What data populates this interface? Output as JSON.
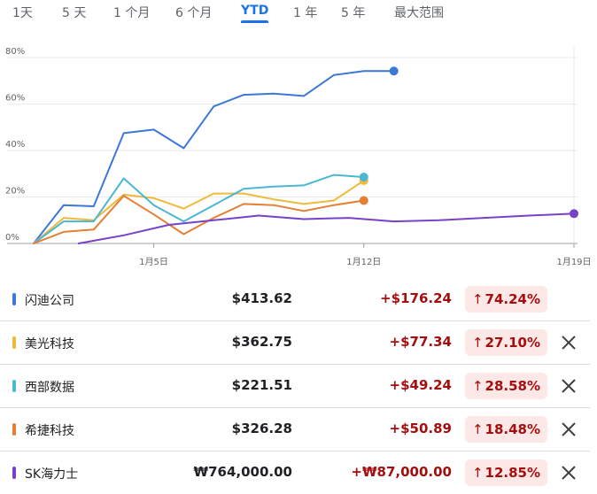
{
  "tabs": [
    {
      "label": "1天"
    },
    {
      "label": "5 天"
    },
    {
      "label": "1 个月"
    },
    {
      "label": "6 个月"
    },
    {
      "label": "YTD",
      "active": true
    },
    {
      "label": "1 年"
    },
    {
      "label": "5 年"
    },
    {
      "label": "最大范围"
    }
  ],
  "colors": {
    "series": [
      "#3c78d8",
      "#f0b93c",
      "#4bb7d3",
      "#e67e33",
      "#7842c8"
    ],
    "positive_text": "#a50e0e",
    "positive_bg": "#fce8e6",
    "active_tab": "#1a73e8"
  },
  "chart_data": {
    "type": "line",
    "y_ticks": [
      "0%",
      "20%",
      "40%",
      "60%",
      "80%"
    ],
    "ylim": [
      0,
      85
    ],
    "x_ticks": [
      {
        "label": "1月5日",
        "x": 4
      },
      {
        "label": "1月12日",
        "x": 11
      },
      {
        "label": "1月19日",
        "x": 18
      }
    ],
    "xlim": [
      0,
      18
    ],
    "grid": true,
    "series": [
      {
        "name": "闪迪公司",
        "x": [
          0,
          1,
          2,
          3,
          4,
          5,
          6,
          7,
          8,
          9,
          10,
          11,
          12
        ],
        "y": [
          0,
          16.5,
          16,
          47.5,
          49,
          41,
          59,
          64,
          64.5,
          63.5,
          72.5,
          74.24,
          74.24
        ],
        "end_marker": true
      },
      {
        "name": "美光科技",
        "x": [
          0,
          1,
          2,
          3,
          4,
          5,
          6,
          7,
          8,
          9,
          10,
          11
        ],
        "y": [
          0,
          11,
          10,
          21,
          19.5,
          15,
          21.5,
          21.5,
          19,
          17,
          18.5,
          27.1
        ],
        "end_marker": true
      },
      {
        "name": "西部数据",
        "x": [
          0,
          1,
          2,
          3,
          4,
          5,
          6,
          7,
          8,
          9,
          10,
          11
        ],
        "y": [
          0,
          9.5,
          9.5,
          28,
          16.5,
          9.5,
          16.5,
          23.5,
          24.5,
          25,
          29.5,
          28.58
        ],
        "end_marker": true
      },
      {
        "name": "希捷科技",
        "x": [
          0,
          1,
          2,
          3,
          4,
          5,
          6,
          7,
          8,
          9,
          10,
          11
        ],
        "y": [
          0,
          5,
          6,
          20.5,
          12.5,
          4,
          11,
          17,
          16.5,
          14,
          16.5,
          18.48
        ],
        "end_marker": true
      },
      {
        "name": "SK海力士",
        "x": [
          1.5,
          3,
          4.5,
          6,
          7.5,
          9,
          10.5,
          12,
          13.5,
          15,
          16.5,
          18
        ],
        "y": [
          0,
          3.5,
          8,
          10,
          12,
          10.5,
          11,
          9.5,
          10,
          11,
          12,
          12.85
        ],
        "end_marker": true
      }
    ]
  },
  "rows": [
    {
      "name": "闪迪公司",
      "price": "$413.62",
      "change": "+$176.24",
      "pct": "74.24%",
      "removable": false
    },
    {
      "name": "美光科技",
      "price": "$362.75",
      "change": "+$77.34",
      "pct": "27.10%",
      "removable": true
    },
    {
      "name": "西部数据",
      "price": "$221.51",
      "change": "+$49.24",
      "pct": "28.58%",
      "removable": true
    },
    {
      "name": "希捷科技",
      "price": "$326.28",
      "change": "+$50.89",
      "pct": "18.48%",
      "removable": true
    },
    {
      "name": "SK海力士",
      "price": "₩764,000.00",
      "change": "+₩87,000.00",
      "pct": "12.85%",
      "removable": true
    }
  ],
  "arrow_icon": "↑",
  "close_icon": "close-icon"
}
